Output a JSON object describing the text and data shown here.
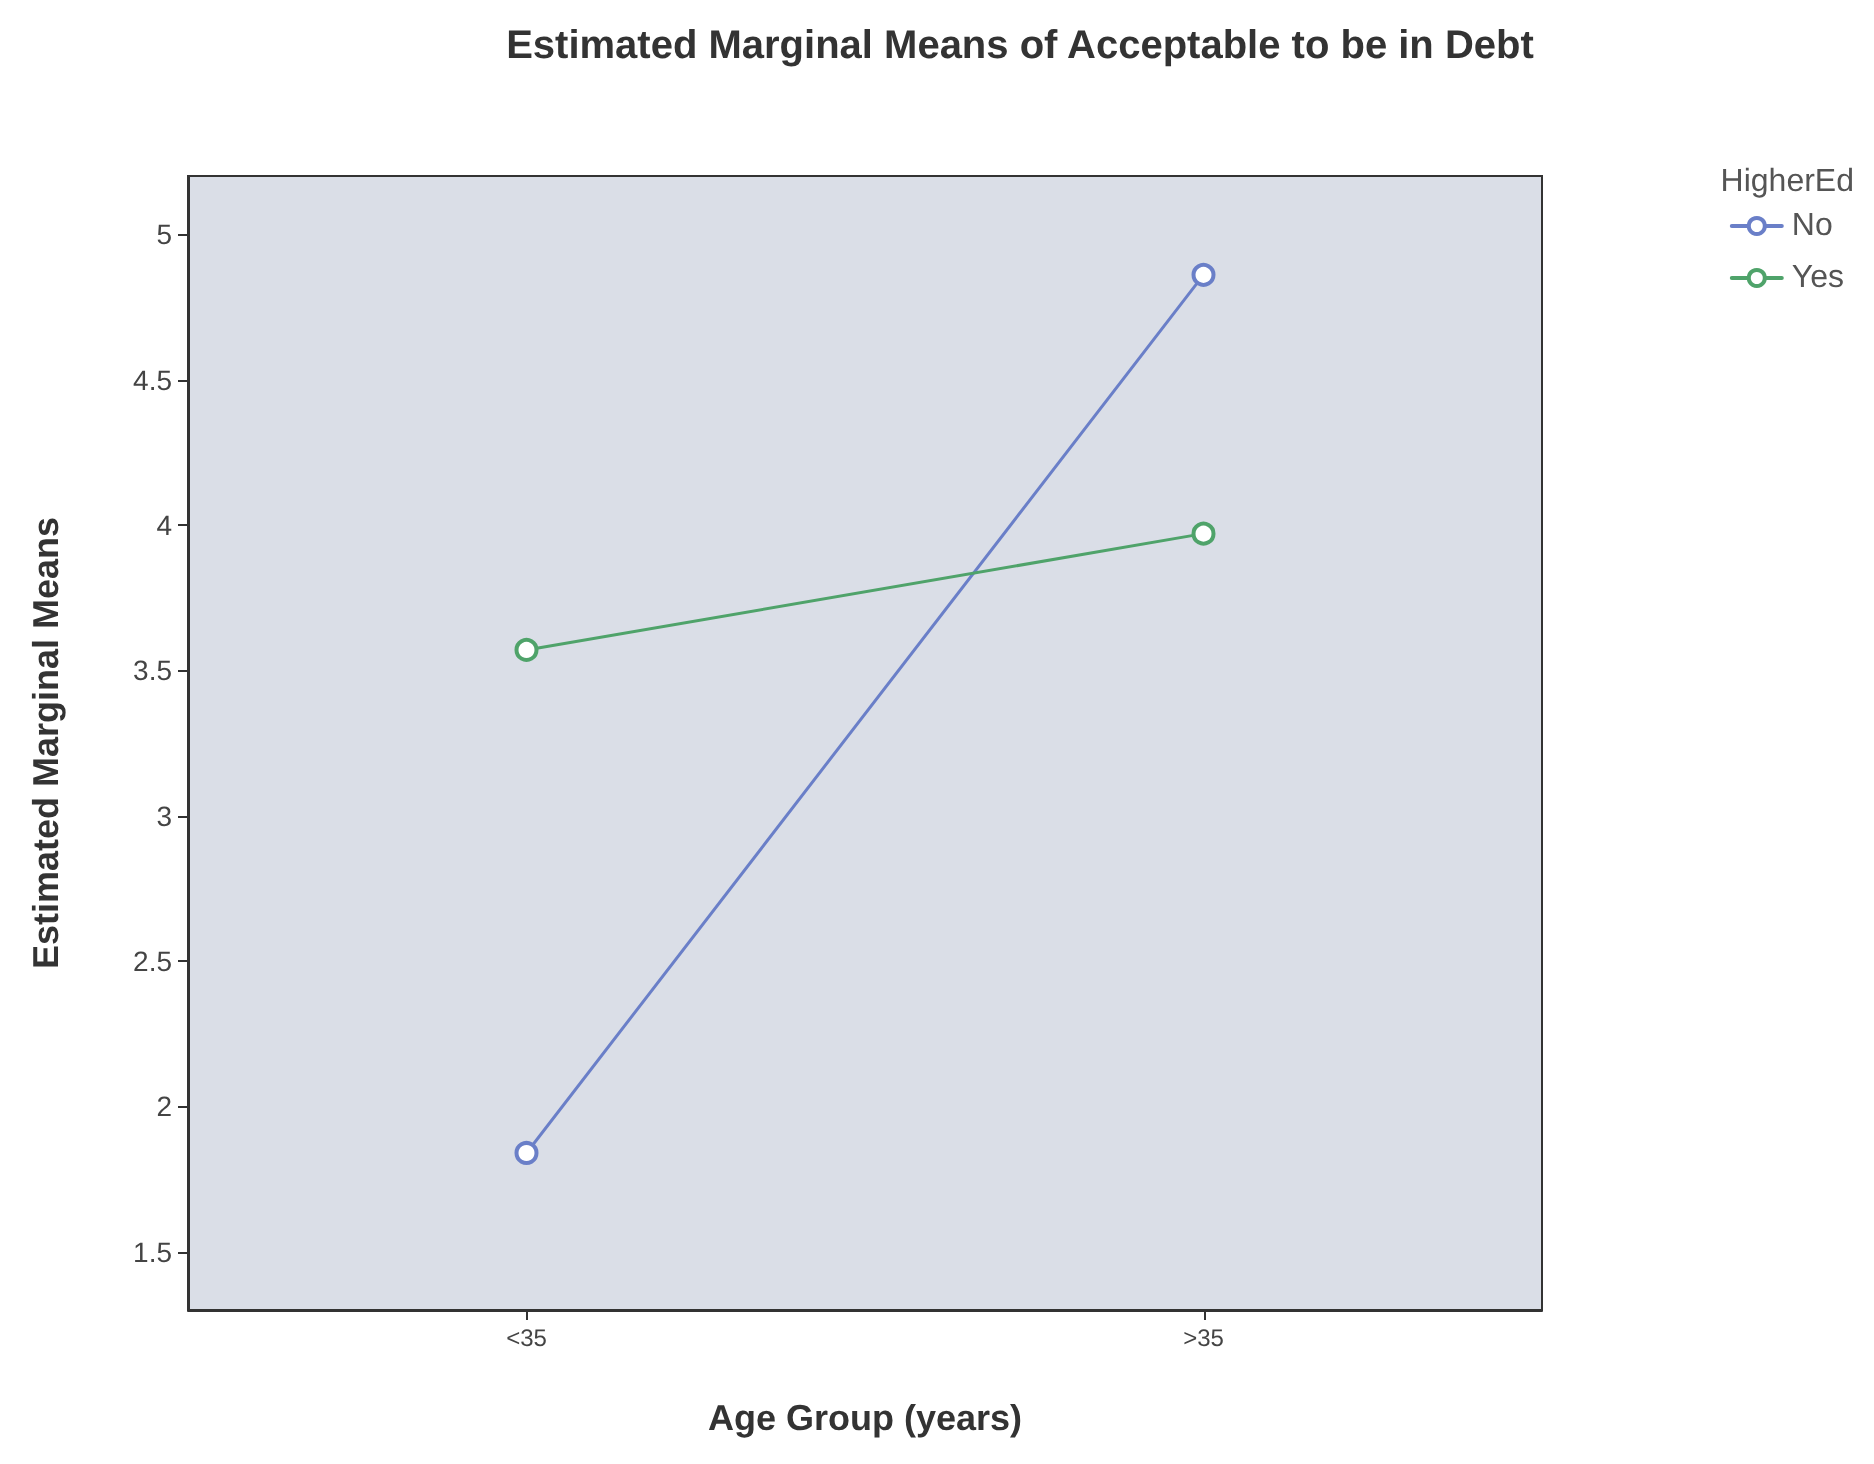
{
  "chart_data": {
    "type": "line",
    "title": "Estimated Marginal Means of Acceptable to be in Debt",
    "xlabel": "Age Group (years)",
    "ylabel": "Estimated Marginal Means",
    "legend_title": "HigherEd",
    "categories": [
      "<35",
      ">35"
    ],
    "series": [
      {
        "name": "No",
        "color": "#6a7fc8",
        "values": [
          1.84,
          4.86
        ]
      },
      {
        "name": "Yes",
        "color": "#4fa36a",
        "values": [
          3.57,
          3.97
        ]
      }
    ],
    "ylim": [
      1.3,
      5.2
    ],
    "yticks": [
      1.5,
      2,
      2.5,
      3,
      3.5,
      4,
      4.5,
      5
    ],
    "grid": false,
    "legend": "top right",
    "marker": "circle",
    "line_style": "solid"
  }
}
